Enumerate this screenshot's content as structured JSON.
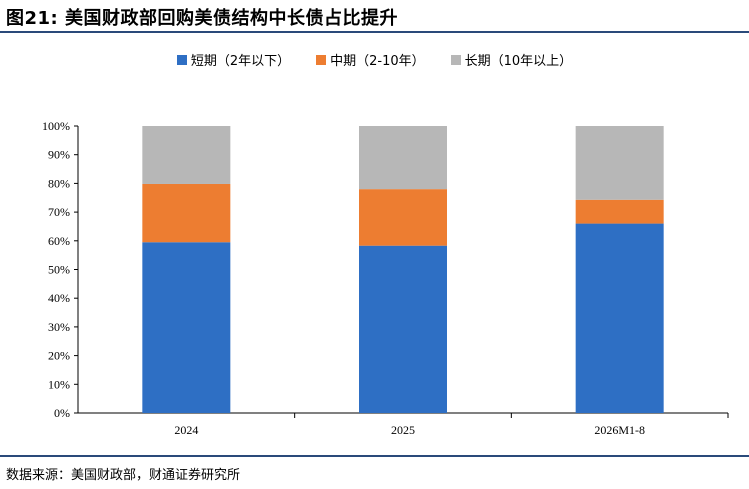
{
  "title": "图21: 美国财政部回购美债结构中长债占比提升",
  "source": "数据来源：美国财政部，财通证券研究所",
  "chart_data": {
    "type": "bar",
    "stacked": true,
    "categories": [
      "2024",
      "2025",
      "2026M1-8"
    ],
    "series": [
      {
        "name": "短期（2年以下）",
        "color": "#2e6fc4",
        "values": [
          59.5,
          58.3,
          66.0
        ]
      },
      {
        "name": "中期（2-10年）",
        "color": "#ed7d31",
        "values": [
          20.3,
          19.7,
          8.3
        ]
      },
      {
        "name": "长期（10年以上）",
        "color": "#b7b7b7",
        "values": [
          20.2,
          22.0,
          25.7
        ]
      }
    ],
    "yticks": [
      "0%",
      "10%",
      "20%",
      "30%",
      "40%",
      "50%",
      "60%",
      "70%",
      "80%",
      "90%",
      "100%"
    ],
    "ylim": [
      0,
      100
    ],
    "legend_position": "top-center",
    "grid": false
  }
}
